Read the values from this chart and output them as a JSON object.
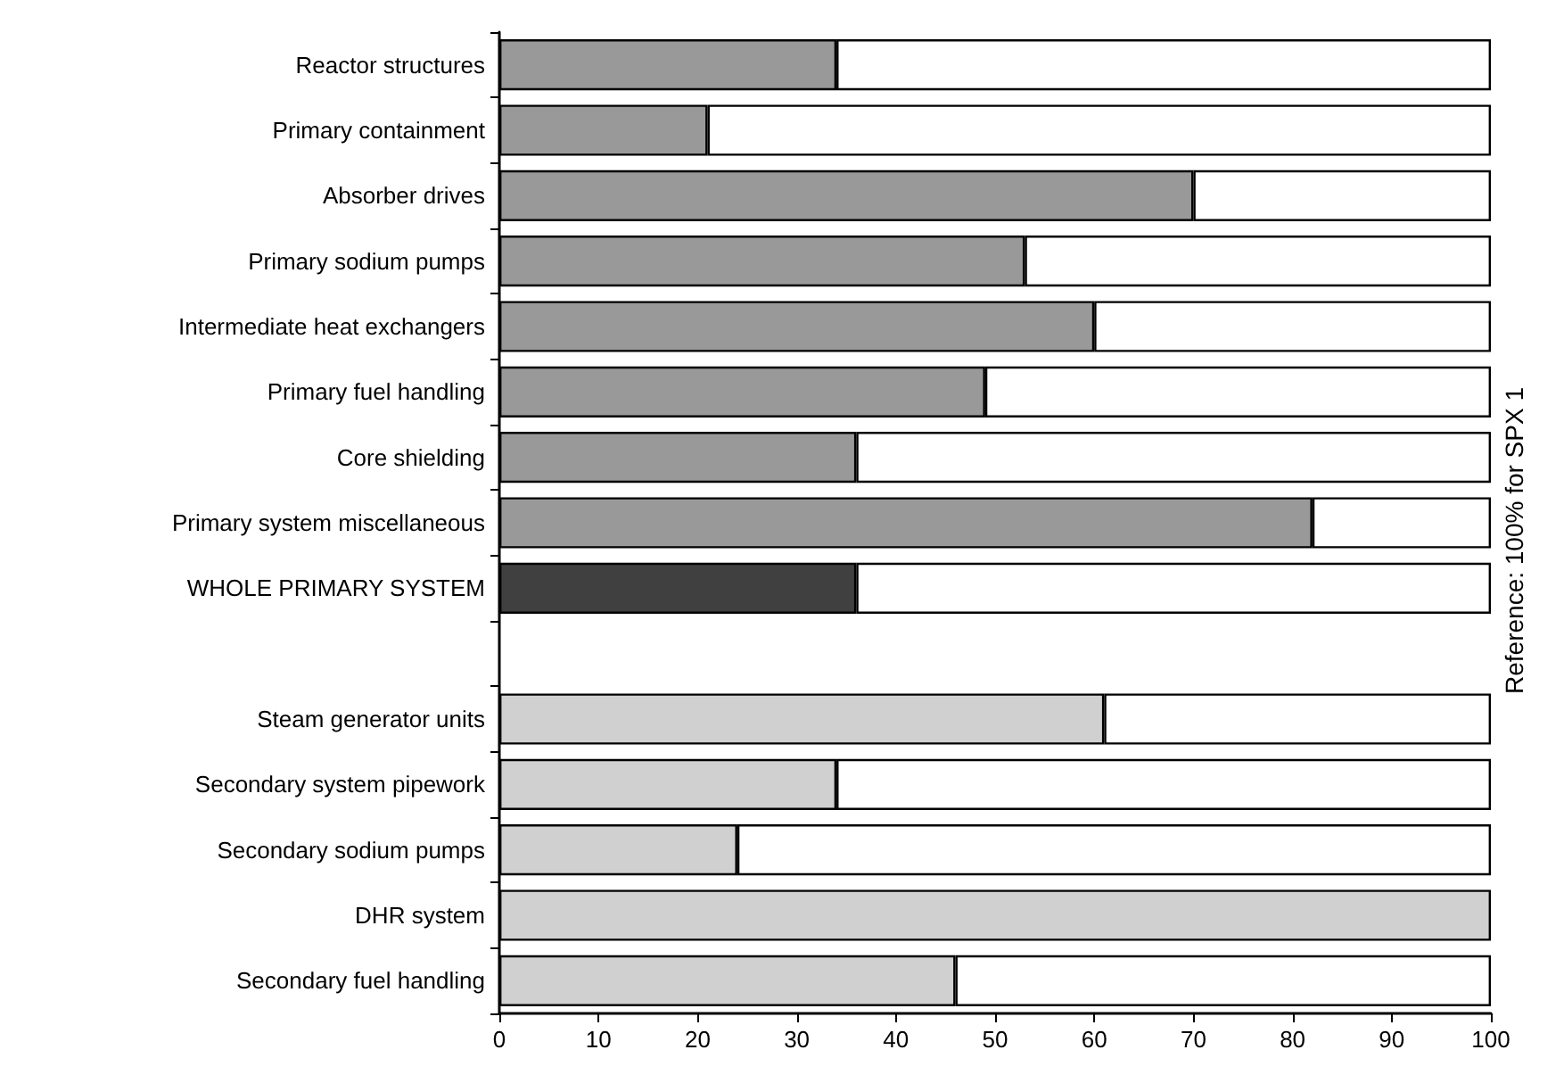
{
  "chart_data": {
    "type": "bar",
    "orientation": "horizontal",
    "stacked": true,
    "y2label": "Reference: 100% for SPX 1",
    "categories": [
      "Reactor structures",
      "Primary containment",
      "Absorber drives",
      "Primary sodium pumps",
      "Intermediate heat exchangers",
      "Primary fuel handling",
      "Core shielding",
      "Primary system miscellaneous",
      "WHOLE PRIMARY SYSTEM",
      null,
      "Steam generator units",
      "Secondary system pipework",
      "Secondary sodium pumps",
      "DHR system",
      "Secondary fuel handling"
    ],
    "series": [
      {
        "colors": [
          "#999999",
          "#999999",
          "#999999",
          "#999999",
          "#999999",
          "#999999",
          "#999999",
          "#999999",
          "#404040",
          null,
          "#d0d0d0",
          "#d0d0d0",
          "#d0d0d0",
          "#d0d0d0",
          "#d0d0d0"
        ],
        "values": [
          34,
          21,
          70,
          53,
          60,
          49,
          36,
          82,
          36,
          null,
          61,
          34,
          24,
          100,
          46
        ]
      },
      {
        "color": "#ffffff",
        "values": [
          66,
          79,
          30,
          47,
          40,
          51,
          64,
          18,
          64,
          null,
          39,
          66,
          76,
          0,
          54
        ]
      }
    ],
    "xlim": [
      0,
      100
    ],
    "xticks": [
      0,
      10,
      20,
      30,
      40,
      50,
      60,
      70,
      80,
      90,
      100
    ]
  }
}
